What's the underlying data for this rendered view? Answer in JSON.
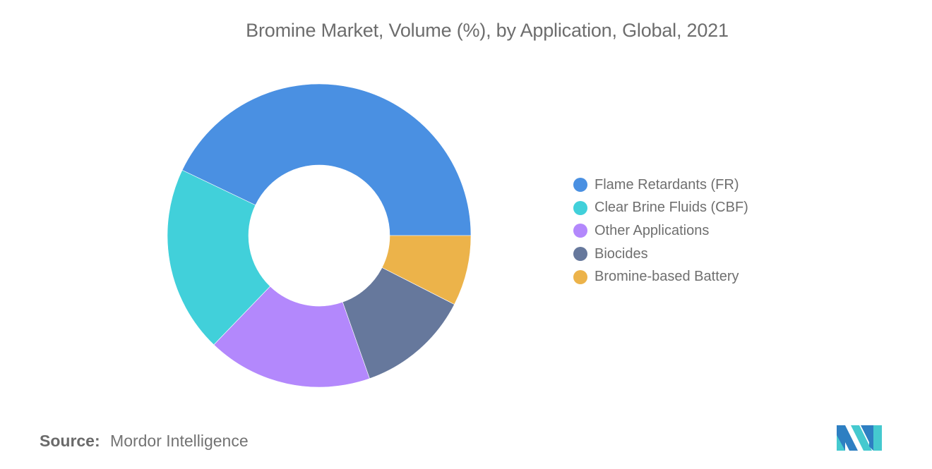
{
  "chart_data": {
    "type": "pie",
    "subtype": "donut",
    "title": "Bromine Market, Volume (%), by Application, Global, 2021",
    "categories": [
      "Flame Retardants (FR)",
      "Clear Brine Fluids (CBF)",
      "Other Applications",
      "Biocides",
      "Bromine-based Battery"
    ],
    "values": [
      42.9,
      19.9,
      17.6,
      12.1,
      7.5
    ],
    "unit": "%",
    "colors": [
      "#4a90e2",
      "#41d0da",
      "#b388fc",
      "#66789c",
      "#ecb34a"
    ],
    "legend_position": "right",
    "start_angle": "3 o'clock, counter-clockwise",
    "inner_radius_ratio": 0.465
  },
  "header": {
    "title": "Bromine Market, Volume (%), by Application, Global, 2021"
  },
  "legend": {
    "items": [
      {
        "label": "Flame Retardants (FR)",
        "color": "#4a90e2"
      },
      {
        "label": "Clear Brine Fluids (CBF)",
        "color": "#41d0da"
      },
      {
        "label": "Other Applications",
        "color": "#b388fc"
      },
      {
        "label": "Biocides",
        "color": "#66789c"
      },
      {
        "label": "Bromine-based Battery",
        "color": "#ecb34a"
      }
    ]
  },
  "footer": {
    "source_label": "Source:",
    "source_value": "Mordor Intelligence",
    "logo_icon": "mordor-intelligence-logo-icon",
    "logo_colors": [
      "#2e7fc2",
      "#45c9cf"
    ]
  }
}
